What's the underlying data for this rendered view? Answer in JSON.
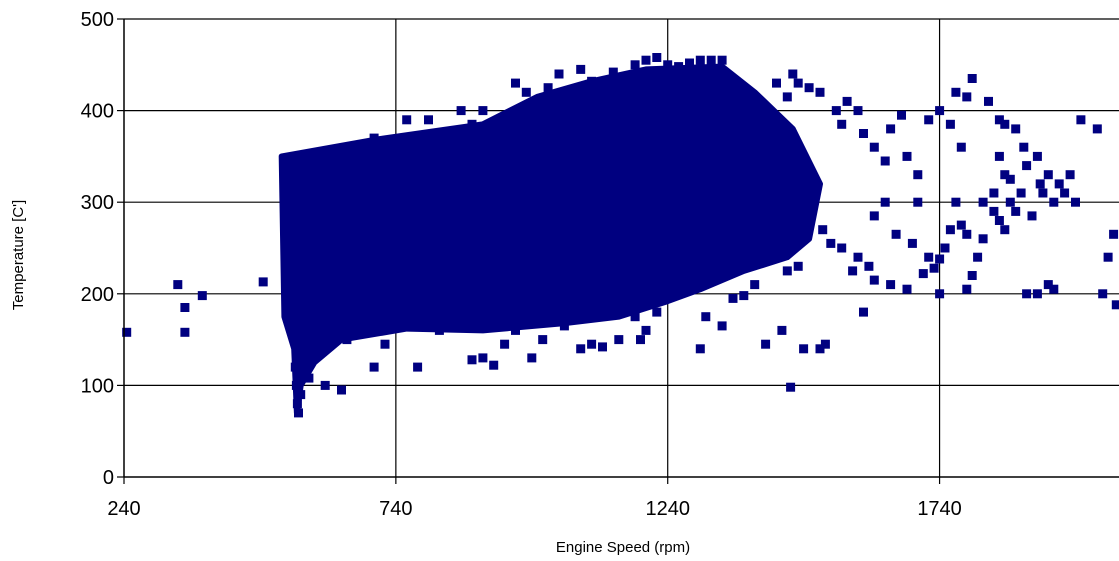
{
  "chart_data": {
    "type": "scatter",
    "title": "",
    "xlabel": "Engine Speed (rpm)",
    "ylabel": "Temperature [C']",
    "xlim": [
      240,
      2070
    ],
    "ylim": [
      0,
      500
    ],
    "xticks": [
      240,
      740,
      1240,
      1740
    ],
    "yticks": [
      0,
      100,
      200,
      300,
      400,
      500
    ],
    "grid": true,
    "legend": "none",
    "marker": "square",
    "series": [
      {
        "color": "#000080",
        "points": [
          [
            245,
            158
          ],
          [
            339,
            210
          ],
          [
            352,
            185
          ],
          [
            352,
            158
          ],
          [
            384,
            198
          ],
          [
            496,
            213
          ],
          [
            535,
            340
          ],
          [
            540,
            300
          ],
          [
            545,
            250
          ],
          [
            550,
            175
          ],
          [
            555,
            120
          ],
          [
            557,
            100
          ],
          [
            559,
            80
          ],
          [
            561,
            70
          ],
          [
            565,
            90
          ],
          [
            570,
            130
          ],
          [
            580,
            108
          ],
          [
            600,
            135
          ],
          [
            610,
            100
          ],
          [
            640,
            95
          ],
          [
            650,
            150
          ],
          [
            700,
            120
          ],
          [
            720,
            145
          ],
          [
            780,
            120
          ],
          [
            820,
            160
          ],
          [
            880,
            128
          ],
          [
            900,
            130
          ],
          [
            920,
            122
          ],
          [
            940,
            145
          ],
          [
            960,
            160
          ],
          [
            990,
            130
          ],
          [
            1010,
            150
          ],
          [
            1050,
            165
          ],
          [
            1080,
            140
          ],
          [
            1100,
            145
          ],
          [
            1120,
            142
          ],
          [
            1150,
            150
          ],
          [
            1180,
            175
          ],
          [
            1190,
            150
          ],
          [
            1200,
            160
          ],
          [
            1220,
            180
          ],
          [
            700,
            370
          ],
          [
            760,
            390
          ],
          [
            800,
            390
          ],
          [
            860,
            400
          ],
          [
            880,
            385
          ],
          [
            900,
            400
          ],
          [
            940,
            380
          ],
          [
            960,
            430
          ],
          [
            980,
            420
          ],
          [
            1020,
            425
          ],
          [
            1040,
            440
          ],
          [
            1080,
            445
          ],
          [
            1100,
            432
          ],
          [
            1140,
            442
          ],
          [
            1180,
            450
          ],
          [
            1200,
            455
          ],
          [
            1220,
            458
          ],
          [
            1240,
            450
          ],
          [
            1260,
            448
          ],
          [
            1280,
            452
          ],
          [
            1300,
            455
          ],
          [
            1320,
            455
          ],
          [
            1340,
            455
          ],
          [
            1300,
            140
          ],
          [
            1310,
            175
          ],
          [
            1340,
            165
          ],
          [
            1360,
            195
          ],
          [
            1380,
            198
          ],
          [
            1400,
            210
          ],
          [
            1420,
            145
          ],
          [
            1450,
            160
          ],
          [
            1466,
            98
          ],
          [
            1460,
            225
          ],
          [
            1480,
            230
          ],
          [
            1490,
            140
          ],
          [
            1520,
            140
          ],
          [
            1530,
            145
          ],
          [
            1440,
            430
          ],
          [
            1460,
            415
          ],
          [
            1470,
            440
          ],
          [
            1480,
            430
          ],
          [
            1500,
            425
          ],
          [
            1520,
            420
          ],
          [
            1550,
            400
          ],
          [
            1560,
            385
          ],
          [
            1570,
            410
          ],
          [
            1590,
            400
          ],
          [
            1600,
            375
          ],
          [
            1620,
            360
          ],
          [
            1640,
            345
          ],
          [
            1650,
            380
          ],
          [
            1670,
            395
          ],
          [
            1680,
            350
          ],
          [
            1700,
            330
          ],
          [
            1720,
            390
          ],
          [
            1740,
            400
          ],
          [
            1760,
            385
          ],
          [
            1780,
            360
          ],
          [
            1525,
            270
          ],
          [
            1540,
            255
          ],
          [
            1560,
            250
          ],
          [
            1580,
            225
          ],
          [
            1590,
            240
          ],
          [
            1610,
            230
          ],
          [
            1620,
            285
          ],
          [
            1640,
            300
          ],
          [
            1660,
            265
          ],
          [
            1690,
            255
          ],
          [
            1700,
            300
          ],
          [
            1720,
            240
          ],
          [
            1730,
            228
          ],
          [
            1740,
            238
          ],
          [
            1750,
            250
          ],
          [
            1760,
            270
          ],
          [
            1770,
            300
          ],
          [
            1780,
            275
          ],
          [
            1790,
            265
          ],
          [
            1800,
            220
          ],
          [
            1810,
            240
          ],
          [
            1840,
            290
          ],
          [
            1820,
            260
          ],
          [
            1850,
            280
          ],
          [
            1860,
            270
          ],
          [
            1880,
            290
          ],
          [
            1900,
            200
          ],
          [
            1910,
            285
          ],
          [
            1920,
            200
          ],
          [
            1940,
            210
          ],
          [
            1950,
            205
          ],
          [
            1960,
            320
          ],
          [
            1970,
            310
          ],
          [
            1980,
            330
          ],
          [
            1990,
            300
          ],
          [
            2000,
            390
          ],
          [
            2030,
            380
          ],
          [
            2040,
            200
          ],
          [
            2050,
            240
          ],
          [
            2060,
            265
          ],
          [
            2065,
            188
          ],
          [
            1600,
            180
          ],
          [
            1620,
            215
          ],
          [
            1650,
            210
          ],
          [
            1680,
            205
          ],
          [
            1710,
            222
          ],
          [
            1740,
            200
          ],
          [
            1790,
            205
          ],
          [
            1800,
            435
          ],
          [
            1790,
            415
          ],
          [
            1770,
            420
          ],
          [
            1830,
            410
          ],
          [
            1850,
            390
          ],
          [
            1860,
            385
          ],
          [
            1880,
            380
          ],
          [
            1820,
            300
          ],
          [
            1840,
            310
          ],
          [
            1870,
            300
          ],
          [
            1890,
            310
          ],
          [
            1900,
            340
          ],
          [
            1920,
            350
          ],
          [
            1925,
            320
          ],
          [
            1850,
            350
          ],
          [
            1860,
            330
          ],
          [
            1870,
            325
          ],
          [
            1895,
            360
          ],
          [
            1930,
            310
          ],
          [
            1940,
            330
          ],
          [
            1950,
            300
          ]
        ]
      }
    ]
  }
}
